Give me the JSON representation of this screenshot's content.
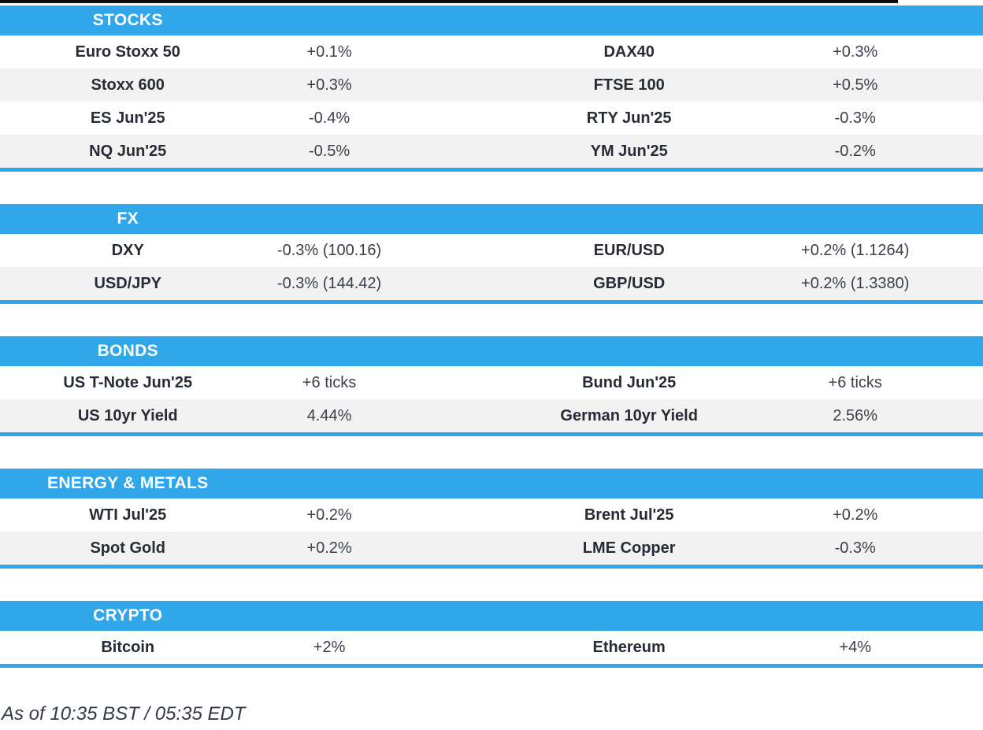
{
  "colors": {
    "header_blue": "#31a7ea",
    "row_alt_gray": "#f2f2f2",
    "top_bar_black": "#0d0d0d",
    "label_text": "#262b35",
    "value_text": "#3a3f4a",
    "footer_text": "#333a47"
  },
  "sections": [
    {
      "title": "STOCKS",
      "rows": [
        [
          "Euro Stoxx 50",
          "+0.1%",
          "DAX40",
          "+0.3%"
        ],
        [
          "Stoxx 600",
          "+0.3%",
          "FTSE 100",
          "+0.5%"
        ],
        [
          "ES Jun'25",
          "-0.4%",
          "RTY Jun'25",
          "-0.3%"
        ],
        [
          "NQ Jun'25",
          "-0.5%",
          "YM Jun'25",
          "-0.2%"
        ]
      ]
    },
    {
      "title": "FX",
      "rows": [
        [
          "DXY",
          "-0.3% (100.16)",
          "EUR/USD",
          "+0.2% (1.1264)"
        ],
        [
          "USD/JPY",
          "-0.3% (144.42)",
          "GBP/USD",
          "+0.2% (1.3380)"
        ]
      ]
    },
    {
      "title": "BONDS",
      "rows": [
        [
          "US T-Note Jun'25",
          "+6 ticks",
          "Bund Jun'25",
          "+6 ticks"
        ],
        [
          "US 10yr Yield",
          "4.44%",
          "German 10yr Yield",
          "2.56%"
        ]
      ]
    },
    {
      "title": "ENERGY & METALS",
      "rows": [
        [
          "WTI Jul'25",
          "+0.2%",
          "Brent Jul'25",
          "+0.2%"
        ],
        [
          "Spot Gold",
          "+0.2%",
          "LME Copper",
          "-0.3%"
        ]
      ]
    },
    {
      "title": "CRYPTO",
      "rows": [
        [
          "Bitcoin",
          "+2%",
          "Ethereum",
          "+4%"
        ]
      ]
    }
  ],
  "footer": {
    "as_of": "As of 10:35 BST / 05:35 EDT"
  }
}
